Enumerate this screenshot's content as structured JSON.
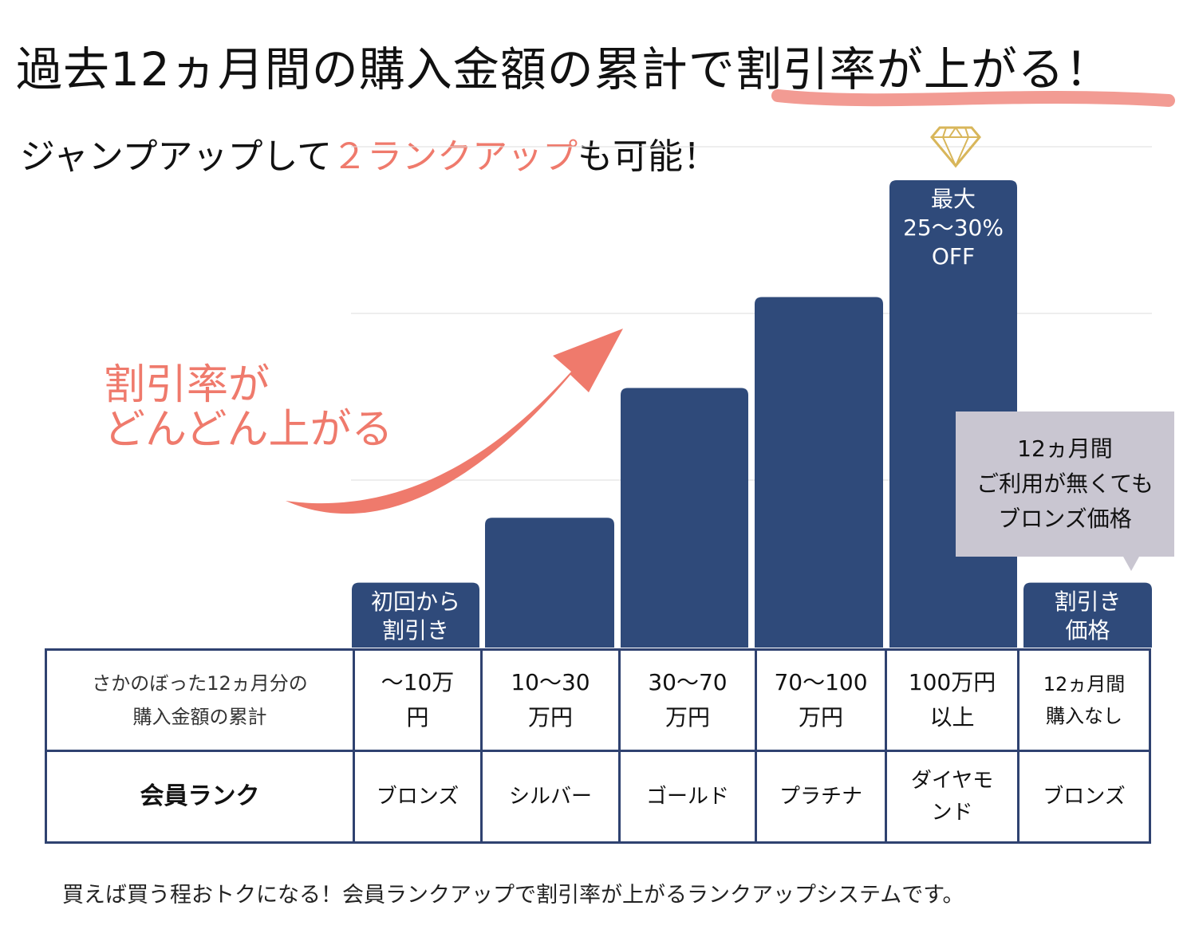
{
  "header": {
    "title": "過去12ヵ月間の購入金額の累計で割引率が上がる！",
    "subtitle_pre": "ジャンプアップして",
    "subtitle_highlight": "２ランクアップ",
    "subtitle_post": "も可能！"
  },
  "callout": {
    "line1": "割引率が",
    "line2": "どんどん上がる"
  },
  "tooltip": {
    "line1": "12ヵ月間",
    "line2": "ご利用が無くても",
    "line3": "ブロンズ価格"
  },
  "footer": "買えば買う程おトクになる！会員ランクアップで割引率が上がるランクアップシステムです。",
  "colors": {
    "bar": "#2f4a7a",
    "accent": "#ef7a6c",
    "tooltip": "#c9c6d1",
    "border": "#2f4270",
    "gem": "#d8b65a"
  },
  "chart_data": {
    "type": "bar",
    "title": "過去12ヵ月間の購入金額の累計で割引率が上がる！",
    "categories": [
      "ブロンズ",
      "シルバー",
      "ゴールド",
      "プラチナ",
      "ダイヤモンド",
      "ブロンズ"
    ],
    "values": [
      1,
      2,
      4,
      5.4,
      7.2,
      1
    ],
    "ylim": [
      0,
      7.2
    ],
    "xlabel": "",
    "ylabel": "",
    "grid": true,
    "bar_labels": [
      [
        "初回から",
        "割引き"
      ],
      [],
      [],
      [],
      [
        "最大",
        "25〜30%",
        "OFF"
      ],
      [
        "割引き",
        "価格"
      ]
    ]
  },
  "table": {
    "row1": {
      "header": [
        "さかのぼった12ヵ月分の",
        "購入金額の累計"
      ],
      "cells": [
        [
          "〜10万",
          "円"
        ],
        [
          "10〜30",
          "万円"
        ],
        [
          "30〜70",
          "万円"
        ],
        [
          "70〜100",
          "万円"
        ],
        [
          "100万円",
          "以上"
        ],
        [
          "12ヵ月間",
          "購入なし"
        ]
      ]
    },
    "row2": {
      "header": "会員ランク",
      "cells": [
        "ブロンズ",
        "シルバー",
        "ゴールド",
        "プラチナ",
        [
          "ダイヤモ",
          "ンド"
        ],
        "ブロンズ"
      ]
    }
  }
}
